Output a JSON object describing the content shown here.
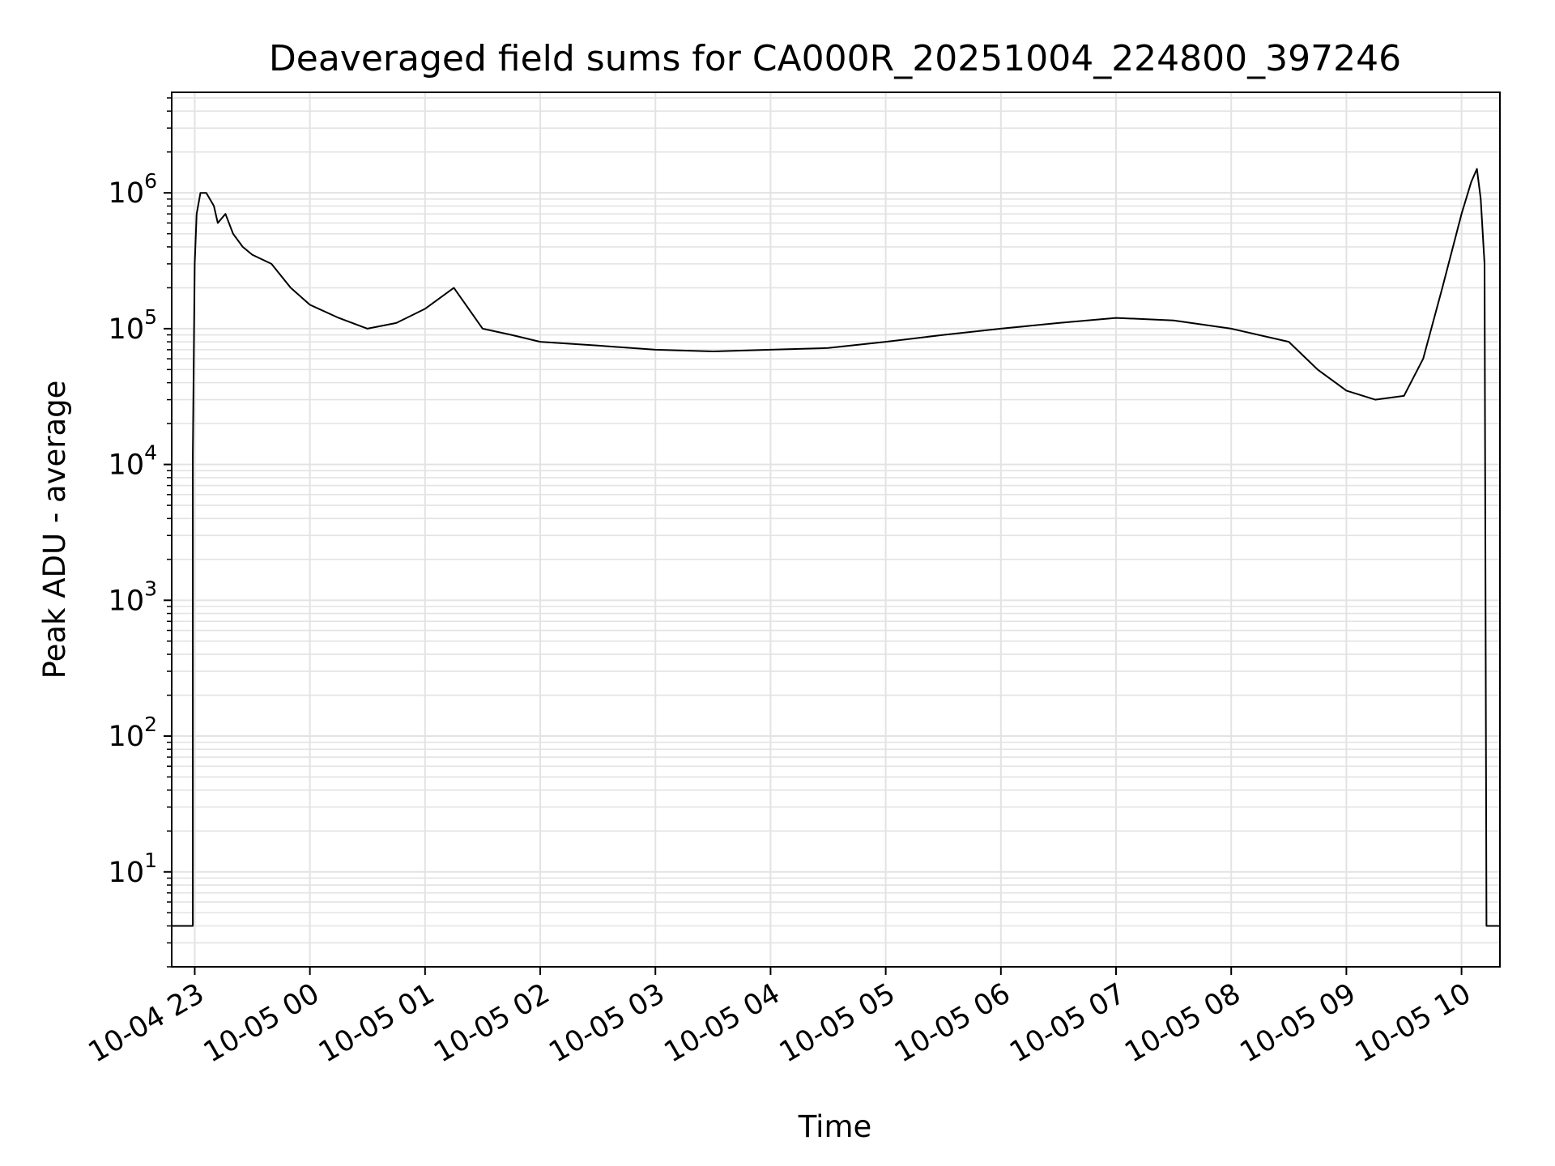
{
  "chart_data": {
    "type": "line",
    "title": "Deaveraged field sums for CA000R_20251004_224800_397246",
    "xlabel": "Time",
    "ylabel": "Peak ADU - average",
    "y_scale": "log",
    "ylim": [
      2,
      5500000
    ],
    "xlim": [
      "2025-10-04 22:48",
      "2025-10-05 10:20"
    ],
    "grid": true,
    "colors": {
      "line": "#000000",
      "grid": "#e3e3e3",
      "axes": "#000000",
      "background": "#ffffff"
    },
    "x_ticks": [
      {
        "time": "2025-10-04 23:00",
        "label": "10-04 23"
      },
      {
        "time": "2025-10-05 00:00",
        "label": "10-05 00"
      },
      {
        "time": "2025-10-05 01:00",
        "label": "10-05 01"
      },
      {
        "time": "2025-10-05 02:00",
        "label": "10-05 02"
      },
      {
        "time": "2025-10-05 03:00",
        "label": "10-05 03"
      },
      {
        "time": "2025-10-05 04:00",
        "label": "10-05 04"
      },
      {
        "time": "2025-10-05 05:00",
        "label": "10-05 05"
      },
      {
        "time": "2025-10-05 06:00",
        "label": "10-05 06"
      },
      {
        "time": "2025-10-05 07:00",
        "label": "10-05 07"
      },
      {
        "time": "2025-10-05 08:00",
        "label": "10-05 08"
      },
      {
        "time": "2025-10-05 09:00",
        "label": "10-05 09"
      },
      {
        "time": "2025-10-05 10:00",
        "label": "10-05 10"
      }
    ],
    "y_ticks": [
      {
        "value": 10,
        "base": "10",
        "exp": "1"
      },
      {
        "value": 100,
        "base": "10",
        "exp": "2"
      },
      {
        "value": 1000,
        "base": "10",
        "exp": "3"
      },
      {
        "value": 10000,
        "base": "10",
        "exp": "4"
      },
      {
        "value": 100000,
        "base": "10",
        "exp": "5"
      },
      {
        "value": 1000000,
        "base": "10",
        "exp": "6"
      }
    ],
    "series": [
      {
        "x": [
          "2025-10-04 22:48",
          "2025-10-04 22:59",
          "2025-10-04 22:59",
          "2025-10-04 23:00",
          "2025-10-04 23:01",
          "2025-10-04 23:03",
          "2025-10-04 23:06",
          "2025-10-04 23:10",
          "2025-10-04 23:12",
          "2025-10-04 23:16",
          "2025-10-04 23:20",
          "2025-10-04 23:25",
          "2025-10-04 23:30",
          "2025-10-04 23:40",
          "2025-10-04 23:50",
          "2025-10-05 00:00",
          "2025-10-05 00:15",
          "2025-10-05 00:30",
          "2025-10-05 00:45",
          "2025-10-05 01:00",
          "2025-10-05 01:15",
          "2025-10-05 01:30",
          "2025-10-05 01:45",
          "2025-10-05 02:00",
          "2025-10-05 02:30",
          "2025-10-05 03:00",
          "2025-10-05 03:30",
          "2025-10-05 04:00",
          "2025-10-05 04:30",
          "2025-10-05 05:00",
          "2025-10-05 05:30",
          "2025-10-05 06:00",
          "2025-10-05 06:30",
          "2025-10-05 07:00",
          "2025-10-05 07:30",
          "2025-10-05 08:00",
          "2025-10-05 08:30",
          "2025-10-05 08:45",
          "2025-10-05 09:00",
          "2025-10-05 09:15",
          "2025-10-05 09:30",
          "2025-10-05 09:40",
          "2025-10-05 09:50",
          "2025-10-05 10:00",
          "2025-10-05 10:05",
          "2025-10-05 10:08",
          "2025-10-05 10:10",
          "2025-10-05 10:12",
          "2025-10-05 10:13",
          "2025-10-05 10:20"
        ],
        "y": [
          4,
          4,
          12000,
          300000,
          700000,
          1000000,
          1000000,
          800000,
          600000,
          700000,
          500000,
          400000,
          350000,
          300000,
          200000,
          150000,
          120000,
          100000,
          110000,
          140000,
          200000,
          100000,
          90000,
          80000,
          75000,
          70000,
          68000,
          70000,
          72000,
          80000,
          90000,
          100000,
          110000,
          120000,
          115000,
          100000,
          80000,
          50000,
          35000,
          30000,
          32000,
          60000,
          200000,
          700000,
          1200000,
          1500000,
          900000,
          300000,
          4,
          4
        ]
      }
    ]
  }
}
